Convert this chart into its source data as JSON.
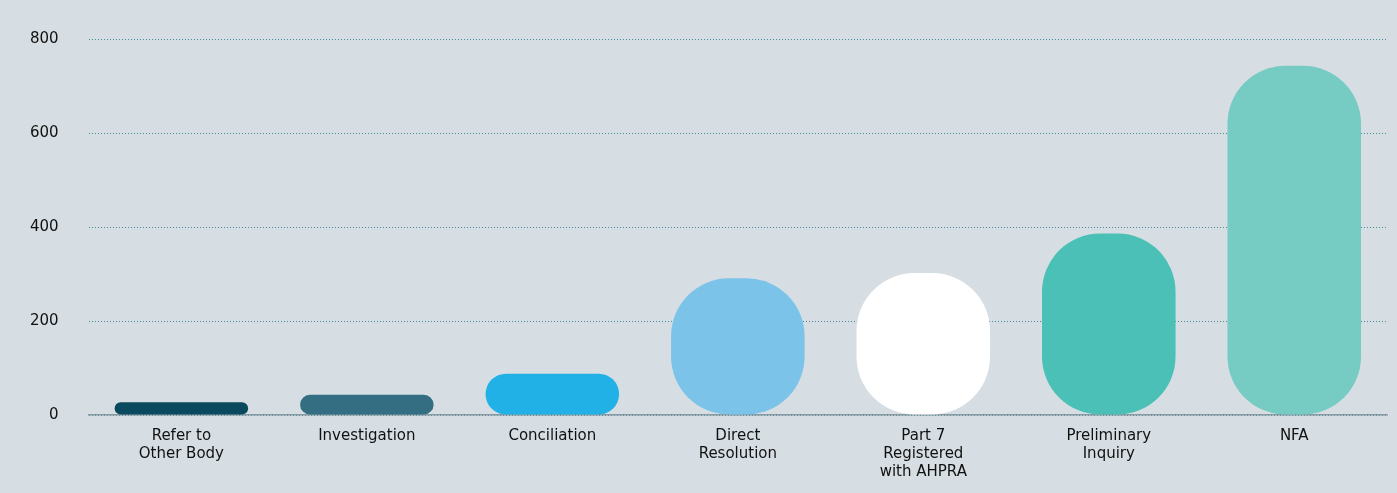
{
  "chart_data": {
    "type": "bar",
    "categories": [
      "Refer to Other Body",
      "Investigation",
      "Conciliation",
      "Direct Resolution",
      "Part 7 Registered with AHPRA",
      "Preliminary Inquiry",
      "NFA"
    ],
    "values": [
      27,
      43,
      88,
      291,
      302,
      386,
      743
    ],
    "colors": [
      "#0b4a5e",
      "#336e82",
      "#22b1e6",
      "#7cc3ea",
      "#ffffff",
      "#4bc0b6",
      "#76cbc2"
    ],
    "ylim": [
      0,
      800
    ],
    "yticks": [
      0,
      200,
      400,
      600,
      800
    ],
    "grid": "y",
    "legend": false
  }
}
